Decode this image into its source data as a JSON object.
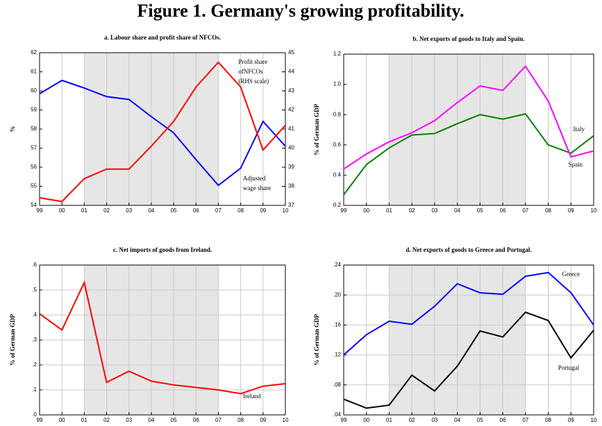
{
  "title": "Figure 1. Germany's growing profitability.",
  "chart_data": [
    {
      "type": "line",
      "title": "a. Labour share and profit share of NFCOs.",
      "ylabel": "%",
      "categories": [
        "99",
        "00",
        "01",
        "02",
        "03",
        "04",
        "05",
        "06",
        "07",
        "08",
        "09",
        "10"
      ],
      "ylim": [
        54,
        62
      ],
      "yticks": [
        54,
        55,
        56,
        57,
        58,
        59,
        60,
        61,
        62
      ],
      "y2lim": [
        37,
        45
      ],
      "y2ticks": [
        37,
        38,
        39,
        40,
        41,
        42,
        43,
        44,
        45
      ],
      "shade": [
        "01",
        "07"
      ],
      "grid": true,
      "series": [
        {
          "label": [
            "Adjusted",
            "wage share"
          ],
          "color": "#0000ff",
          "values": [
            59.85,
            60.55,
            60.15,
            59.7,
            59.55,
            58.65,
            57.8,
            56.4,
            55.05,
            55.95,
            58.4,
            57.1
          ]
        },
        {
          "label": [
            "Profit share",
            "ofNFCOs",
            "(RHS scale)"
          ],
          "color": "#ff0000",
          "axis": "y2",
          "values": [
            37.4,
            37.2,
            38.4,
            38.9,
            38.9,
            40.1,
            41.4,
            43.2,
            44.5,
            43.2,
            39.9,
            41.2
          ]
        }
      ]
    },
    {
      "type": "line",
      "title": "b. Net exports of goods to Italy and Spain.",
      "ylabel": "% of German GDP",
      "categories": [
        "99",
        "00",
        "01",
        "02",
        "03",
        "04",
        "05",
        "06",
        "07",
        "08",
        "09",
        "10"
      ],
      "ylim": [
        0.2,
        1.2
      ],
      "yticks": [
        0.2,
        0.4,
        0.6,
        0.8,
        {
          "value": 1,
          "label": "1.0"
        },
        1.2
      ],
      "shade": [
        "01",
        "07"
      ],
      "grid": true,
      "series": [
        {
          "name": "Italy",
          "color": "#008000",
          "values": [
            0.27,
            0.47,
            0.58,
            0.665,
            0.675,
            0.74,
            0.8,
            0.77,
            0.805,
            0.6,
            0.545,
            0.66
          ]
        },
        {
          "name": "Spain",
          "color": "#ff00ff",
          "values": [
            0.44,
            0.54,
            0.62,
            0.68,
            0.76,
            0.88,
            0.99,
            0.96,
            1.12,
            0.89,
            0.52,
            0.56
          ]
        }
      ]
    },
    {
      "type": "line",
      "title": "c. Net imports of goods from Ireland.",
      "ylabel": "% of German GDP",
      "categories": [
        "99",
        "00",
        "01",
        "02",
        "03",
        "04",
        "05",
        "06",
        "07",
        "08",
        "09",
        "10"
      ],
      "ylim": [
        0,
        0.6
      ],
      "yticks": [
        {
          "value": 0,
          "label": ".0"
        },
        {
          "value": 0.1,
          "label": ".1"
        },
        {
          "value": 0.2,
          "label": ".2"
        },
        {
          "value": 0.3,
          "label": ".3"
        },
        {
          "value": 0.4,
          "label": ".4"
        },
        {
          "value": 0.5,
          "label": ".5"
        },
        {
          "value": 0.6,
          "label": ".6"
        }
      ],
      "shade": [
        "01",
        "07"
      ],
      "grid": true,
      "series": [
        {
          "name": "Ireland",
          "color": "#ff0000",
          "values": [
            0.405,
            0.34,
            0.53,
            0.13,
            0.175,
            0.135,
            0.12,
            0.11,
            0.1,
            0.085,
            0.115,
            0.125
          ]
        }
      ]
    },
    {
      "type": "line",
      "title": "d. Net exports of goods to Greece and Portugal.",
      "ylabel": "% of German GDP",
      "categories": [
        "99",
        "00",
        "01",
        "02",
        "03",
        "04",
        "05",
        "06",
        "07",
        "08",
        "09",
        "10"
      ],
      "ylim": [
        0.04,
        0.24
      ],
      "yticks": [
        {
          "value": 0.04,
          "label": ".04"
        },
        {
          "value": 0.08,
          "label": ".08"
        },
        {
          "value": 0.12,
          "label": ".12"
        },
        {
          "value": 0.16,
          "label": ".16"
        },
        {
          "value": 0.2,
          "label": ".20"
        },
        {
          "value": 0.24,
          "label": ".24"
        }
      ],
      "shade": [
        "01",
        "07"
      ],
      "grid": true,
      "series": [
        {
          "name": "Greece",
          "color": "#0000ff",
          "values": [
            0.12,
            0.147,
            0.165,
            0.161,
            0.185,
            0.215,
            0.203,
            0.201,
            0.225,
            0.23,
            0.203,
            0.16
          ]
        },
        {
          "name": "Portugal",
          "color": "#000000",
          "values": [
            0.061,
            0.049,
            0.053,
            0.093,
            0.072,
            0.105,
            0.152,
            0.144,
            0.177,
            0.166,
            0.116,
            0.153
          ]
        }
      ]
    }
  ]
}
